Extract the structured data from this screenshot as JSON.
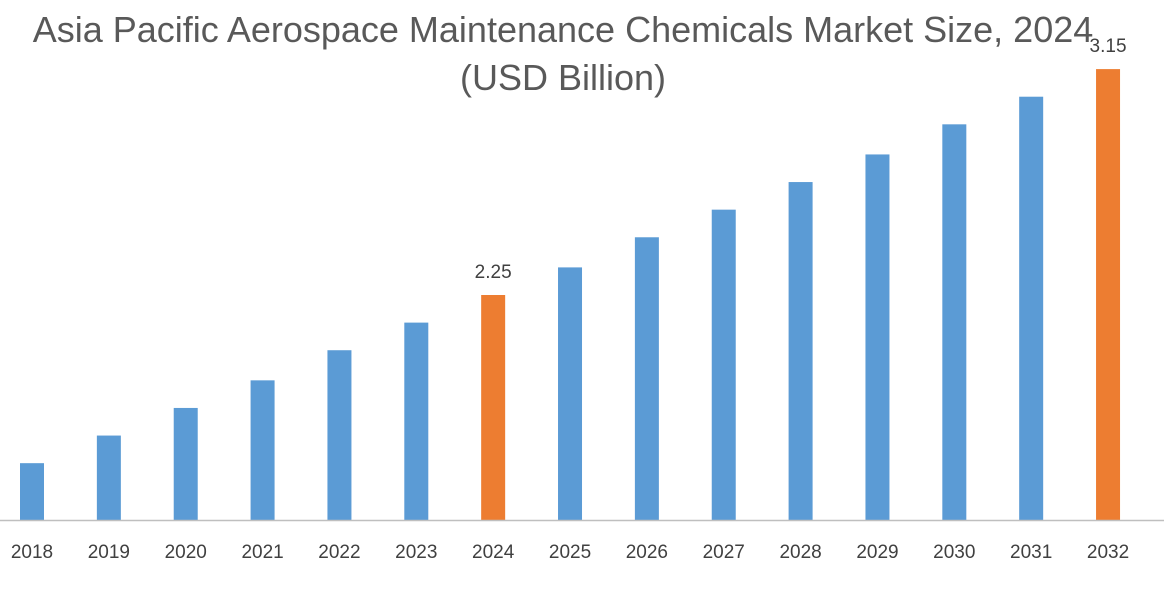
{
  "chart_data": {
    "type": "bar",
    "title": "Asia Pacific Aerospace Maintenance Chemicals Market Size, 2024 (USD Billion)",
    "categories": [
      "2018",
      "2019",
      "2020",
      "2021",
      "2022",
      "2023",
      "2024",
      "2025",
      "2026",
      "2027",
      "2028",
      "2029",
      "2030",
      "2031",
      "2032"
    ],
    "values": [
      1.58,
      1.69,
      1.8,
      1.91,
      2.03,
      2.14,
      2.25,
      2.36,
      2.48,
      2.59,
      2.7,
      2.81,
      2.93,
      3.04,
      3.15
    ],
    "data_labels": {
      "2024": "2.25",
      "2032": "3.15"
    },
    "highlighted": [
      "2024",
      "2032"
    ],
    "ylim": [
      1.35,
      3.25
    ],
    "grid": false,
    "colors": {
      "bar": "#5B9BD5",
      "highlight": "#ED7D31",
      "axis": "#BFBFBF"
    }
  }
}
